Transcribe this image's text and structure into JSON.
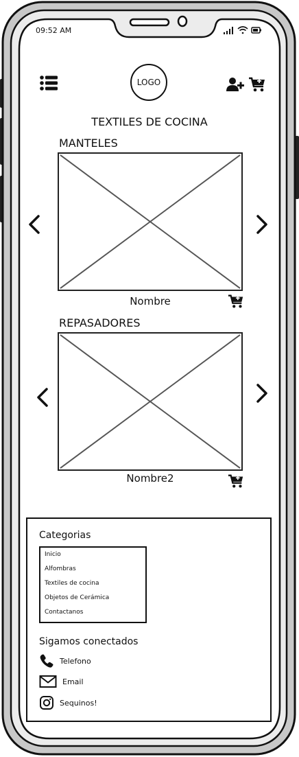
{
  "status_bar": {
    "time": "09:52 AM"
  },
  "header": {
    "menu_icon": "hamburger-list-icon",
    "logo_text": "LOGO",
    "add_user_icon": "add-user-icon",
    "cart_icon": "add-to-cart-icon"
  },
  "page_title": "TEXTILES DE COCINA",
  "sections": [
    {
      "title": "MANTELES",
      "product_name": "Nombre",
      "image": "image-placeholder",
      "prev_icon": "chevron-left-icon",
      "next_icon": "chevron-right-icon",
      "cart_icon": "add-to-cart-icon"
    },
    {
      "title": "REPASADORES",
      "product_name": "Nombre2",
      "image": "image-placeholder",
      "prev_icon": "chevron-left-icon",
      "next_icon": "chevron-right-icon",
      "cart_icon": "add-to-cart-icon"
    }
  ],
  "footer": {
    "categories_title": "Categorias",
    "categories": [
      "Inicio",
      "Alfombras",
      "Textiles de cocina",
      "Objetos de Cerámica",
      "Contactanos"
    ],
    "connect_title": "Sigamos conectados",
    "social": [
      {
        "label": "Telefono",
        "icon": "phone-icon"
      },
      {
        "label": "Email",
        "icon": "email-icon"
      },
      {
        "label": "Sequinos!",
        "icon": "instagram-icon"
      }
    ]
  },
  "colors": {
    "frame_outer": "#c8c8c8",
    "frame_stroke": "#111111",
    "screen": "#ffffff",
    "placeholder_cross": "#555555"
  }
}
